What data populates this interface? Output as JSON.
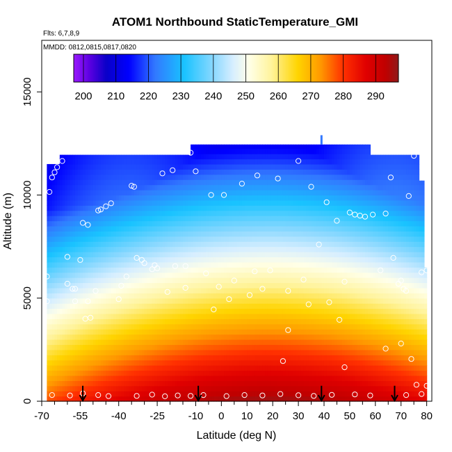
{
  "chart_data": {
    "type": "heatmap",
    "title": "ATOM1 Northbound StaticTemperature_GMI",
    "annotations": [
      "Flts: 6,7,8,9",
      "MMDD: 0812,0815,0817,0820"
    ],
    "xlabel": "Latitude (deg N)",
    "ylabel": "Altitude (m)",
    "xlim": [
      -70,
      82
    ],
    "ylim": [
      0,
      17500
    ],
    "x_ticks": [
      -70,
      -55,
      -40,
      -25,
      -10,
      0,
      10,
      20,
      30,
      40,
      50,
      60,
      70,
      80
    ],
    "x_minor_ticks": [
      -65,
      -60,
      -50,
      -45,
      -35,
      -30,
      -20,
      -15,
      -5,
      5,
      15,
      25,
      35,
      45,
      55,
      65,
      75
    ],
    "y_ticks": [
      0,
      5000,
      10000,
      15000
    ],
    "colorbar": {
      "min": 197,
      "max": 297,
      "tick_values": [
        200,
        210,
        220,
        230,
        240,
        250,
        260,
        270,
        280,
        290
      ],
      "tick_labels": [
        "200",
        "210",
        "220",
        "230",
        "240",
        "250",
        "260",
        "270",
        "280",
        "290"
      ]
    },
    "color_stops": [
      {
        "t": 197,
        "c": "#9a1aff"
      },
      {
        "t": 202,
        "c": "#5a00e0"
      },
      {
        "t": 207,
        "c": "#0a00c8"
      },
      {
        "t": 214,
        "c": "#0000ff"
      },
      {
        "t": 222,
        "c": "#3278ff"
      },
      {
        "t": 231,
        "c": "#19c3ff"
      },
      {
        "t": 240,
        "c": "#8ad8ff"
      },
      {
        "t": 246,
        "c": "#d6eeff"
      },
      {
        "t": 251,
        "c": "#ffffe8"
      },
      {
        "t": 258,
        "c": "#fff39a"
      },
      {
        "t": 266,
        "c": "#ffd400"
      },
      {
        "t": 273,
        "c": "#ff9900"
      },
      {
        "t": 280,
        "c": "#ff3000"
      },
      {
        "t": 287,
        "c": "#e00000"
      },
      {
        "t": 293,
        "c": "#c00000"
      },
      {
        "t": 297,
        "c": "#8f1a1a"
      }
    ],
    "field_extent": {
      "lat_min": -68,
      "lat_max": 80
    },
    "arrows_lat": [
      -54,
      -9,
      39,
      67.5
    ],
    "sample_points": [
      [
        -68,
        4850
      ],
      [
        -68,
        6050
      ],
      [
        -67,
        10150
      ],
      [
        -66,
        10850
      ],
      [
        -65,
        11100
      ],
      [
        -64,
        11350
      ],
      [
        -62,
        11650
      ],
      [
        -60,
        7000
      ],
      [
        -60,
        5700
      ],
      [
        -58,
        5450
      ],
      [
        -57,
        5450
      ],
      [
        -57,
        4850
      ],
      [
        -55,
        6850
      ],
      [
        -54,
        8650
      ],
      [
        -53,
        4000
      ],
      [
        -52,
        4850
      ],
      [
        -52,
        8550
      ],
      [
        -51,
        4050
      ],
      [
        -49,
        5350
      ],
      [
        -48,
        9250
      ],
      [
        -47,
        9300
      ],
      [
        -45,
        9450
      ],
      [
        -43,
        9600
      ],
      [
        -40,
        4950
      ],
      [
        -39,
        5600
      ],
      [
        -37,
        6050
      ],
      [
        -35,
        10450
      ],
      [
        -34,
        10400
      ],
      [
        -33,
        6950
      ],
      [
        -31,
        6850
      ],
      [
        -30,
        6700
      ],
      [
        -27,
        6400
      ],
      [
        -26,
        6600
      ],
      [
        -25,
        6450
      ],
      [
        -23,
        11050
      ],
      [
        -21,
        5300
      ],
      [
        -19,
        11200
      ],
      [
        -18,
        6550
      ],
      [
        -14,
        5500
      ],
      [
        -14,
        6550
      ],
      [
        -12,
        12050
      ],
      [
        -10,
        11150
      ],
      [
        -6,
        6200
      ],
      [
        -4,
        10000
      ],
      [
        -3,
        4450
      ],
      [
        -1,
        5550
      ],
      [
        1,
        10000
      ],
      [
        3,
        4950
      ],
      [
        5,
        5850
      ],
      [
        8,
        10550
      ],
      [
        11,
        5150
      ],
      [
        13,
        6300
      ],
      [
        14,
        10950
      ],
      [
        16,
        5450
      ],
      [
        19,
        6350
      ],
      [
        22,
        10800
      ],
      [
        26,
        5350
      ],
      [
        30,
        11650
      ],
      [
        32,
        5900
      ],
      [
        34,
        4700
      ],
      [
        35,
        10400
      ],
      [
        38,
        7600
      ],
      [
        41,
        9650
      ],
      [
        42,
        4800
      ],
      [
        45,
        8750
      ],
      [
        46,
        3950
      ],
      [
        48,
        5800
      ],
      [
        50,
        9150
      ],
      [
        52,
        9050
      ],
      [
        54,
        9000
      ],
      [
        56,
        8950
      ],
      [
        59,
        9050
      ],
      [
        62,
        6350
      ],
      [
        64,
        9100
      ],
      [
        66,
        10850
      ],
      [
        67,
        6950
      ],
      [
        69,
        5700
      ],
      [
        70,
        5850
      ],
      [
        71,
        5450
      ],
      [
        72,
        5350
      ],
      [
        73,
        9950
      ],
      [
        74,
        2050
      ],
      [
        75,
        11900
      ],
      [
        78,
        6250
      ],
      [
        80,
        6350
      ],
      [
        80,
        750
      ],
      [
        -66,
        300
      ],
      [
        -59,
        280
      ],
      [
        -54,
        380
      ],
      [
        -48,
        300
      ],
      [
        -44,
        250
      ],
      [
        -33,
        260
      ],
      [
        -27,
        320
      ],
      [
        -22,
        240
      ],
      [
        -17,
        280
      ],
      [
        -12,
        260
      ],
      [
        -7,
        300
      ],
      [
        2,
        250
      ],
      [
        9,
        300
      ],
      [
        16,
        280
      ],
      [
        23,
        350
      ],
      [
        30,
        290
      ],
      [
        36,
        260
      ],
      [
        43,
        310
      ],
      [
        48,
        1650
      ],
      [
        52,
        330
      ],
      [
        58,
        280
      ],
      [
        64,
        2550
      ],
      [
        70,
        2800
      ],
      [
        72,
        300
      ],
      [
        76,
        800
      ],
      [
        78,
        350
      ],
      [
        24,
        1950
      ],
      [
        26,
        3450
      ]
    ]
  }
}
